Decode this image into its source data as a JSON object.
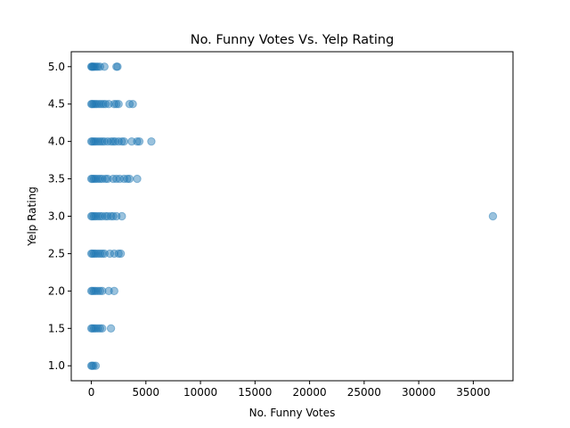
{
  "chart_data": {
    "type": "scatter",
    "title": "No. Funny Votes Vs. Yelp Rating",
    "xlabel": "No. Funny Votes",
    "ylabel": "Yelp Rating",
    "xlim": [
      -1840,
      38640
    ],
    "ylim": [
      0.8,
      5.2
    ],
    "x_ticks": [
      0,
      5000,
      10000,
      15000,
      20000,
      25000,
      30000,
      35000
    ],
    "x_tick_labels": [
      "0",
      "5000",
      "10000",
      "15000",
      "20000",
      "25000",
      "30000",
      "35000"
    ],
    "y_ticks": [
      1.0,
      1.5,
      2.0,
      2.5,
      3.0,
      3.5,
      4.0,
      4.5,
      5.0
    ],
    "y_tick_labels": [
      "1.0",
      "1.5",
      "2.0",
      "2.5",
      "3.0",
      "3.5",
      "4.0",
      "4.5",
      "5.0"
    ],
    "grid": false,
    "legend": "none",
    "marker_color": "#1f77b4",
    "marker_alpha": 0.45,
    "series": [
      {
        "points": [
          {
            "x": 0,
            "y": 5.0
          },
          {
            "x": 50,
            "y": 5.0
          },
          {
            "x": 120,
            "y": 5.0
          },
          {
            "x": 200,
            "y": 5.0
          },
          {
            "x": 300,
            "y": 5.0
          },
          {
            "x": 450,
            "y": 5.0
          },
          {
            "x": 600,
            "y": 5.0
          },
          {
            "x": 800,
            "y": 5.0
          },
          {
            "x": 1200,
            "y": 5.0
          },
          {
            "x": 2300,
            "y": 5.0
          },
          {
            "x": 2400,
            "y": 5.0
          },
          {
            "x": 0,
            "y": 4.5
          },
          {
            "x": 80,
            "y": 4.5
          },
          {
            "x": 200,
            "y": 4.5
          },
          {
            "x": 350,
            "y": 4.5
          },
          {
            "x": 500,
            "y": 4.5
          },
          {
            "x": 700,
            "y": 4.5
          },
          {
            "x": 900,
            "y": 4.5
          },
          {
            "x": 1100,
            "y": 4.5
          },
          {
            "x": 1300,
            "y": 4.5
          },
          {
            "x": 1600,
            "y": 4.5
          },
          {
            "x": 2100,
            "y": 4.5
          },
          {
            "x": 2300,
            "y": 4.5
          },
          {
            "x": 2500,
            "y": 4.5
          },
          {
            "x": 3500,
            "y": 4.5
          },
          {
            "x": 3800,
            "y": 4.5
          },
          {
            "x": 0,
            "y": 4.0
          },
          {
            "x": 100,
            "y": 4.0
          },
          {
            "x": 250,
            "y": 4.0
          },
          {
            "x": 400,
            "y": 4.0
          },
          {
            "x": 600,
            "y": 4.0
          },
          {
            "x": 800,
            "y": 4.0
          },
          {
            "x": 1000,
            "y": 4.0
          },
          {
            "x": 1200,
            "y": 4.0
          },
          {
            "x": 1500,
            "y": 4.0
          },
          {
            "x": 1800,
            "y": 4.0
          },
          {
            "x": 2000,
            "y": 4.0
          },
          {
            "x": 2200,
            "y": 4.0
          },
          {
            "x": 2500,
            "y": 4.0
          },
          {
            "x": 2800,
            "y": 4.0
          },
          {
            "x": 3000,
            "y": 4.0
          },
          {
            "x": 3700,
            "y": 4.0
          },
          {
            "x": 4200,
            "y": 4.0
          },
          {
            "x": 4400,
            "y": 4.0
          },
          {
            "x": 5500,
            "y": 4.0
          },
          {
            "x": 0,
            "y": 3.5
          },
          {
            "x": 100,
            "y": 3.5
          },
          {
            "x": 250,
            "y": 3.5
          },
          {
            "x": 400,
            "y": 3.5
          },
          {
            "x": 600,
            "y": 3.5
          },
          {
            "x": 800,
            "y": 3.5
          },
          {
            "x": 1000,
            "y": 3.5
          },
          {
            "x": 1300,
            "y": 3.5
          },
          {
            "x": 1500,
            "y": 3.5
          },
          {
            "x": 2000,
            "y": 3.5
          },
          {
            "x": 2300,
            "y": 3.5
          },
          {
            "x": 2600,
            "y": 3.5
          },
          {
            "x": 3000,
            "y": 3.5
          },
          {
            "x": 3300,
            "y": 3.5
          },
          {
            "x": 3500,
            "y": 3.5
          },
          {
            "x": 4200,
            "y": 3.5
          },
          {
            "x": 0,
            "y": 3.0
          },
          {
            "x": 100,
            "y": 3.0
          },
          {
            "x": 250,
            "y": 3.0
          },
          {
            "x": 400,
            "y": 3.0
          },
          {
            "x": 600,
            "y": 3.0
          },
          {
            "x": 800,
            "y": 3.0
          },
          {
            "x": 1000,
            "y": 3.0
          },
          {
            "x": 1300,
            "y": 3.0
          },
          {
            "x": 1500,
            "y": 3.0
          },
          {
            "x": 1800,
            "y": 3.0
          },
          {
            "x": 2000,
            "y": 3.0
          },
          {
            "x": 2300,
            "y": 3.0
          },
          {
            "x": 2800,
            "y": 3.0
          },
          {
            "x": 36800,
            "y": 3.0
          },
          {
            "x": 0,
            "y": 2.5
          },
          {
            "x": 100,
            "y": 2.5
          },
          {
            "x": 250,
            "y": 2.5
          },
          {
            "x": 400,
            "y": 2.5
          },
          {
            "x": 600,
            "y": 2.5
          },
          {
            "x": 800,
            "y": 2.5
          },
          {
            "x": 1000,
            "y": 2.5
          },
          {
            "x": 1200,
            "y": 2.5
          },
          {
            "x": 1700,
            "y": 2.5
          },
          {
            "x": 2100,
            "y": 2.5
          },
          {
            "x": 2500,
            "y": 2.5
          },
          {
            "x": 2700,
            "y": 2.5
          },
          {
            "x": 0,
            "y": 2.0
          },
          {
            "x": 100,
            "y": 2.0
          },
          {
            "x": 250,
            "y": 2.0
          },
          {
            "x": 400,
            "y": 2.0
          },
          {
            "x": 600,
            "y": 2.0
          },
          {
            "x": 800,
            "y": 2.0
          },
          {
            "x": 1000,
            "y": 2.0
          },
          {
            "x": 1600,
            "y": 2.0
          },
          {
            "x": 2100,
            "y": 2.0
          },
          {
            "x": 0,
            "y": 1.5
          },
          {
            "x": 100,
            "y": 1.5
          },
          {
            "x": 250,
            "y": 1.5
          },
          {
            "x": 400,
            "y": 1.5
          },
          {
            "x": 600,
            "y": 1.5
          },
          {
            "x": 800,
            "y": 1.5
          },
          {
            "x": 1000,
            "y": 1.5
          },
          {
            "x": 1800,
            "y": 1.5
          },
          {
            "x": 0,
            "y": 1.0
          },
          {
            "x": 80,
            "y": 1.0
          },
          {
            "x": 200,
            "y": 1.0
          },
          {
            "x": 400,
            "y": 1.0
          }
        ]
      }
    ]
  }
}
